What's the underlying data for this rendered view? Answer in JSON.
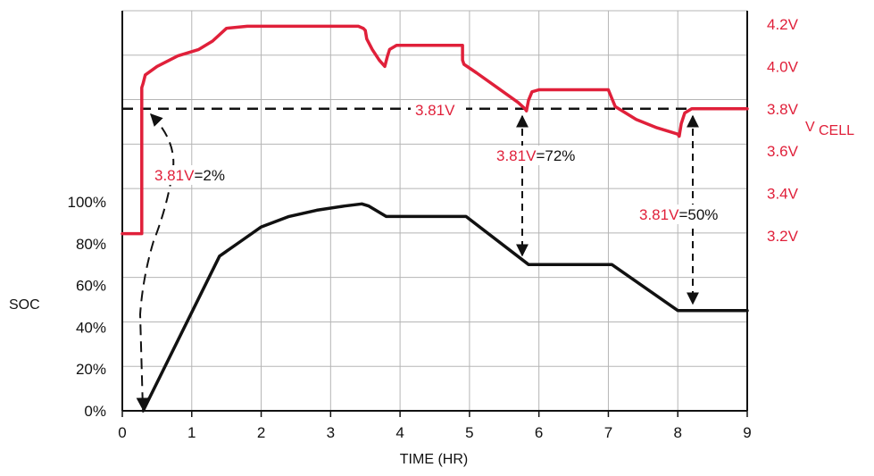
{
  "chart_data": {
    "type": "line",
    "xlabel": "TIME (HR)",
    "ylabel_left": "SOC",
    "ylabel_right": "V",
    "ylabel_right_sub": "CELL",
    "xlim": [
      0,
      9
    ],
    "x_ticks": [
      "0",
      "1",
      "2",
      "3",
      "4",
      "5",
      "6",
      "7",
      "8",
      "9"
    ],
    "soc_ticks": [
      "0%",
      "20%",
      "40%",
      "60%",
      "80%",
      "100%"
    ],
    "soc_lim": [
      0,
      100
    ],
    "v_ticks": [
      "3.2V",
      "3.4V",
      "3.6V",
      "3.8V",
      "4.0V",
      "4.2V"
    ],
    "v_lim": [
      3.2,
      4.2
    ],
    "grid": true,
    "colors": {
      "voltage": "#e0203a",
      "soc": "#111111"
    },
    "series": [
      {
        "axis": "right",
        "x": [
          0,
          0.28,
          0.28,
          0.3,
          0.33,
          0.5,
          0.8,
          1.1,
          1.3,
          1.5,
          1.8,
          3.4,
          3.47,
          3.5,
          3.52,
          3.6,
          3.7,
          3.78,
          3.82,
          3.85,
          3.95,
          4.9,
          4.9,
          4.92,
          5.1,
          5.4,
          5.7,
          5.8,
          5.82,
          5.85,
          5.9,
          6.0,
          7.0,
          7.05,
          7.1,
          7.4,
          7.7,
          8.0,
          8.02,
          8.05,
          8.1,
          8.2,
          8.3,
          9.0
        ],
        "values": [
          3.21,
          3.21,
          3.9,
          3.92,
          3.96,
          4.0,
          4.05,
          4.08,
          4.12,
          4.18,
          4.19,
          4.19,
          4.18,
          4.17,
          4.13,
          4.08,
          4.03,
          4.0,
          4.05,
          4.08,
          4.1,
          4.1,
          4.03,
          4.01,
          3.97,
          3.9,
          3.83,
          3.8,
          3.79,
          3.84,
          3.88,
          3.89,
          3.89,
          3.85,
          3.81,
          3.75,
          3.71,
          3.68,
          3.67,
          3.73,
          3.78,
          3.8,
          3.8,
          3.8
        ]
      },
      {
        "axis": "left",
        "x": [
          0.3,
          1.4,
          1.7,
          2.0,
          2.4,
          2.8,
          3.2,
          3.45,
          3.55,
          3.8,
          4.0,
          4.95,
          5.85,
          7.05,
          8.0,
          9.0
        ],
        "values": [
          0,
          74,
          81,
          88,
          93,
          96,
          98,
          99,
          98,
          93,
          93,
          93,
          70,
          70,
          48,
          48
        ]
      }
    ],
    "reference_line": {
      "value": 3.81,
      "label": "3.81V"
    },
    "annotations": [
      {
        "prefix": "3.81V",
        "suffix": "=2%"
      },
      {
        "prefix": "3.81V",
        "suffix": "=72%"
      },
      {
        "prefix": "3.81V",
        "suffix": "=50%"
      }
    ]
  }
}
